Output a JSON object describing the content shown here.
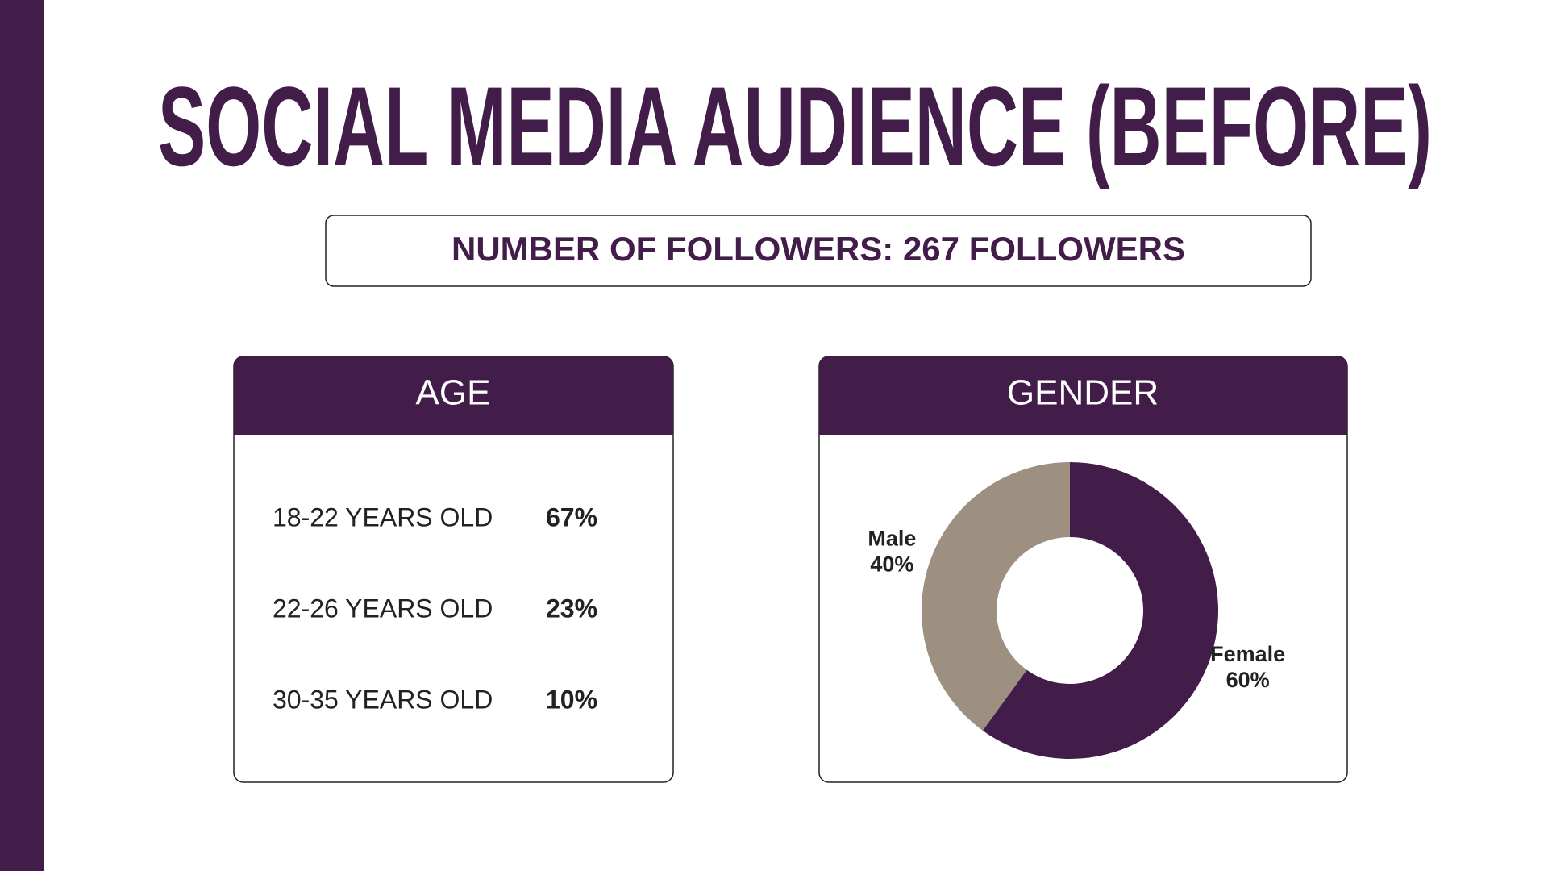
{
  "title": "SOCIAL MEDIA AUDIENCE (BEFORE)",
  "subtitle": "NUMBER OF FOLLOWERS: 267 FOLLOWERS",
  "age": {
    "header": "AGE",
    "rows": [
      [
        "18-22 YEARS OLD",
        "67%"
      ],
      [
        "22-26 YEARS OLD",
        "23%"
      ],
      [
        "30-35 YEARS OLD",
        "10%"
      ]
    ]
  },
  "chart_data": {
    "type": "donut",
    "title": "GENDER",
    "categories": [
      "Male",
      "Female"
    ],
    "values": [
      40,
      60
    ],
    "value_labels": [
      "40%",
      "60%"
    ],
    "colors": [
      "#9e9080",
      "#431d4a"
    ]
  }
}
